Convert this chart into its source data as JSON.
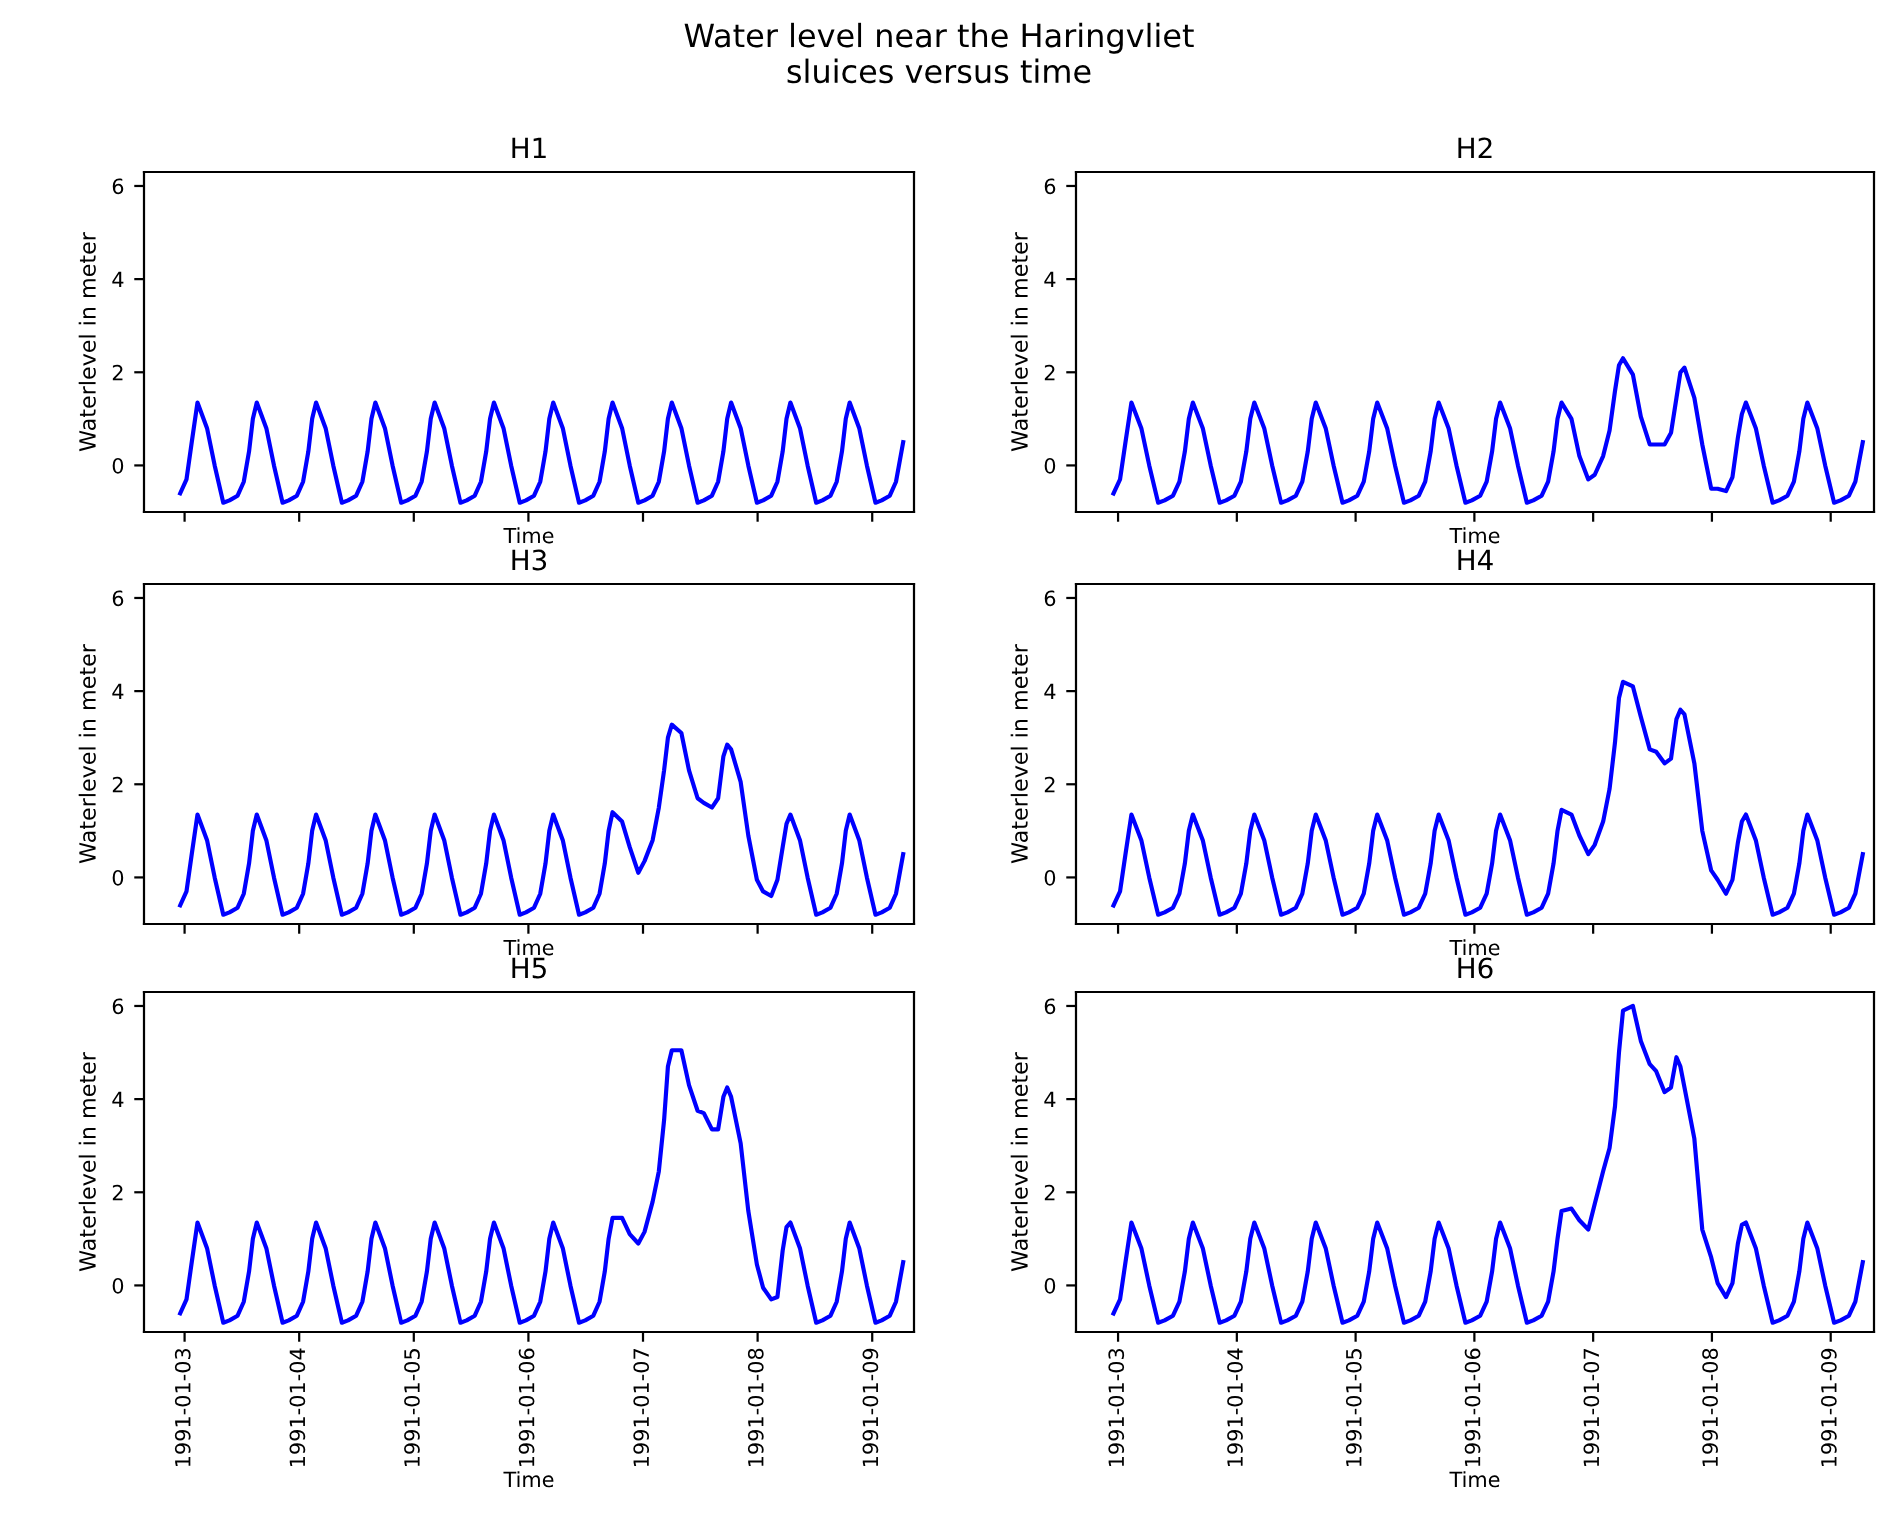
{
  "chart_data": [
    {
      "type": "line",
      "title": "H1",
      "xlabel": "Time",
      "ylabel": "Waterlevel in meter",
      "annotations": [
        "Water level near the Haringvliet\nsluices versus time"
      ],
      "tick_labels": "y",
      "xlim": [
        "1991-01-02T15:30",
        "1991-01-09T08:45"
      ],
      "ylim": [
        -1.0,
        6.3
      ],
      "yticks": [
        0,
        2,
        4,
        6
      ],
      "xticks": [
        "1991-01-03",
        "1991-01-04",
        "1991-01-05",
        "1991-01-06",
        "1991-01-07",
        "1991-01-08",
        "1991-01-09"
      ],
      "x": [
        "1991-01-02T23:05",
        "1991-01-03T00:24",
        "1991-01-03T01:30",
        "1991-01-03T02:42",
        "1991-01-03T04:42",
        "1991-01-03T06:18",
        "1991-01-03T08:06",
        "1991-01-03T09:24",
        "1991-01-03T11:06",
        "1991-01-03T12:24",
        "1991-01-03T13:30",
        "1991-01-03T14:18",
        "1991-01-03T15:07",
        "1991-01-03T17:07",
        "1991-01-03T18:43",
        "1991-01-03T20:31",
        "1991-01-03T21:49",
        "1991-01-03T23:31",
        "1991-01-04T00:49",
        "1991-01-04T01:55",
        "1991-01-04T02:43",
        "1991-01-04T03:32",
        "1991-01-04T05:32",
        "1991-01-04T07:08",
        "1991-01-04T08:56",
        "1991-01-04T10:14",
        "1991-01-04T11:56",
        "1991-01-04T13:14",
        "1991-01-04T14:20",
        "1991-01-04T15:08",
        "1991-01-04T15:57",
        "1991-01-04T17:57",
        "1991-01-04T19:33",
        "1991-01-04T21:21",
        "1991-01-04T22:39",
        "1991-01-05T00:21",
        "1991-01-05T01:39",
        "1991-01-05T02:45",
        "1991-01-05T03:33",
        "1991-01-05T04:22",
        "1991-01-05T06:22",
        "1991-01-05T07:58",
        "1991-01-05T09:46",
        "1991-01-05T11:04",
        "1991-01-05T12:46",
        "1991-01-05T14:04",
        "1991-01-05T15:10",
        "1991-01-05T15:58",
        "1991-01-05T16:47",
        "1991-01-05T18:47",
        "1991-01-05T20:23",
        "1991-01-05T22:11",
        "1991-01-05T23:29",
        "1991-01-06T01:11",
        "1991-01-06T02:29",
        "1991-01-06T03:35",
        "1991-01-06T04:23",
        "1991-01-06T05:12",
        "1991-01-06T07:12",
        "1991-01-06T08:48",
        "1991-01-06T10:36",
        "1991-01-06T11:54",
        "1991-01-06T13:36",
        "1991-01-06T14:54",
        "1991-01-06T16:00",
        "1991-01-06T16:48",
        "1991-01-06T17:37",
        "1991-01-06T19:37",
        "1991-01-06T21:13",
        "1991-01-06T23:01",
        "1991-01-07T00:19",
        "1991-01-07T02:01",
        "1991-01-07T03:19",
        "1991-01-07T04:25",
        "1991-01-07T05:13",
        "1991-01-07T06:02",
        "1991-01-07T08:02",
        "1991-01-07T09:38",
        "1991-01-07T11:26",
        "1991-01-07T12:44",
        "1991-01-07T14:26",
        "1991-01-07T15:44",
        "1991-01-07T16:50",
        "1991-01-07T17:38",
        "1991-01-07T18:27",
        "1991-01-07T20:27",
        "1991-01-07T22:03",
        "1991-01-07T23:51",
        "1991-01-08T01:09",
        "1991-01-08T02:51",
        "1991-01-08T04:09",
        "1991-01-08T05:15",
        "1991-01-08T06:03",
        "1991-01-08T06:52",
        "1991-01-08T08:52",
        "1991-01-08T10:28",
        "1991-01-08T12:16",
        "1991-01-08T13:34",
        "1991-01-08T15:16",
        "1991-01-08T16:34",
        "1991-01-08T17:40",
        "1991-01-08T18:28",
        "1991-01-08T19:17",
        "1991-01-08T21:17",
        "1991-01-08T22:53",
        "1991-01-09T00:41",
        "1991-01-09T01:59",
        "1991-01-09T03:41",
        "1991-01-09T04:59",
        "1991-01-09T06:29"
      ],
      "series": [
        {
          "color": "#0000ff",
          "values": [
            -0.6,
            -0.3,
            0.5,
            1.35,
            0.8,
            0.0,
            -0.8,
            -0.75,
            -0.65,
            -0.35,
            0.3,
            1.0,
            1.35,
            0.8,
            0.0,
            -0.8,
            -0.75,
            -0.65,
            -0.35,
            0.3,
            1.0,
            1.35,
            0.8,
            0.0,
            -0.8,
            -0.75,
            -0.65,
            -0.35,
            0.3,
            1.0,
            1.35,
            0.8,
            0.0,
            -0.8,
            -0.75,
            -0.65,
            -0.35,
            0.3,
            1.0,
            1.35,
            0.8,
            0.0,
            -0.8,
            -0.75,
            -0.65,
            -0.35,
            0.3,
            1.0,
            1.35,
            0.8,
            0.0,
            -0.8,
            -0.75,
            -0.65,
            -0.35,
            0.3,
            1.0,
            1.35,
            0.8,
            0.0,
            -0.8,
            -0.75,
            -0.65,
            -0.35,
            0.3,
            1.0,
            1.35,
            0.8,
            0.0,
            -0.8,
            -0.75,
            -0.65,
            -0.35,
            0.3,
            1.0,
            1.35,
            0.8,
            0.0,
            -0.8,
            -0.75,
            -0.65,
            -0.35,
            0.3,
            1.0,
            1.35,
            0.8,
            0.0,
            -0.8,
            -0.75,
            -0.65,
            -0.35,
            0.3,
            1.0,
            1.35,
            0.8,
            0.0,
            -0.8,
            -0.75,
            -0.65,
            -0.35,
            0.3,
            1.0,
            1.35,
            0.8,
            0.0,
            -0.8,
            -0.75,
            -0.65,
            -0.35,
            0.5
          ]
        }
      ]
    },
    {
      "type": "line",
      "title": "H2",
      "xlabel": "Time",
      "ylabel": "Waterlevel in meter",
      "tick_labels": "y",
      "xlim": [
        "1991-01-02T15:30",
        "1991-01-09T08:45"
      ],
      "ylim": [
        -1.0,
        6.3
      ],
      "yticks": [
        0,
        2,
        4,
        6
      ],
      "xticks": [
        "1991-01-03",
        "1991-01-04",
        "1991-01-05",
        "1991-01-06",
        "1991-01-07",
        "1991-01-08",
        "1991-01-09"
      ],
      "x": [
        "1991-01-02T23:05",
        "1991-01-03T00:24",
        "1991-01-03T01:30",
        "1991-01-03T02:42",
        "1991-01-03T04:42",
        "1991-01-03T06:18",
        "1991-01-03T08:06",
        "1991-01-03T09:24",
        "1991-01-03T11:06",
        "1991-01-03T12:24",
        "1991-01-03T13:30",
        "1991-01-03T14:18",
        "1991-01-03T15:07",
        "1991-01-03T17:07",
        "1991-01-03T18:43",
        "1991-01-03T20:31",
        "1991-01-03T21:49",
        "1991-01-03T23:31",
        "1991-01-04T00:49",
        "1991-01-04T01:55",
        "1991-01-04T02:43",
        "1991-01-04T03:32",
        "1991-01-04T05:32",
        "1991-01-04T07:08",
        "1991-01-04T08:56",
        "1991-01-04T10:14",
        "1991-01-04T11:56",
        "1991-01-04T13:14",
        "1991-01-04T14:20",
        "1991-01-04T15:08",
        "1991-01-04T15:57",
        "1991-01-04T17:57",
        "1991-01-04T19:33",
        "1991-01-04T21:21",
        "1991-01-04T22:39",
        "1991-01-05T00:21",
        "1991-01-05T01:39",
        "1991-01-05T02:45",
        "1991-01-05T03:33",
        "1991-01-05T04:22",
        "1991-01-05T06:22",
        "1991-01-05T07:58",
        "1991-01-05T09:46",
        "1991-01-05T11:04",
        "1991-01-05T12:46",
        "1991-01-05T14:04",
        "1991-01-05T15:10",
        "1991-01-05T15:58",
        "1991-01-05T16:47",
        "1991-01-05T18:47",
        "1991-01-05T20:23",
        "1991-01-05T22:11",
        "1991-01-05T23:29",
        "1991-01-06T01:11",
        "1991-01-06T02:29",
        "1991-01-06T03:35",
        "1991-01-06T04:23",
        "1991-01-06T05:12",
        "1991-01-06T07:12",
        "1991-01-06T08:48",
        "1991-01-06T10:36",
        "1991-01-06T11:54",
        "1991-01-06T13:36",
        "1991-01-06T14:54",
        "1991-01-06T16:00",
        "1991-01-06T16:48",
        "1991-01-06T17:37",
        "1991-01-06T19:37",
        "1991-01-06T21:13",
        "1991-01-06T23:01",
        "1991-01-07T00:19",
        "1991-01-07T02:01",
        "1991-01-07T03:19",
        "1991-01-07T04:25",
        "1991-01-07T05:13",
        "1991-01-07T06:02",
        "1991-01-07T08:02",
        "1991-01-07T09:38",
        "1991-01-07T11:26",
        "1991-01-07T12:44",
        "1991-01-07T14:26",
        "1991-01-07T15:44",
        "1991-01-07T16:50",
        "1991-01-07T17:38",
        "1991-01-07T18:27",
        "1991-01-07T20:27",
        "1991-01-07T22:03",
        "1991-01-07T23:51",
        "1991-01-08T01:09",
        "1991-01-08T02:51",
        "1991-01-08T04:09",
        "1991-01-08T05:15",
        "1991-01-08T06:03",
        "1991-01-08T06:52",
        "1991-01-08T08:52",
        "1991-01-08T10:28",
        "1991-01-08T12:16",
        "1991-01-08T13:34",
        "1991-01-08T15:16",
        "1991-01-08T16:34",
        "1991-01-08T17:40",
        "1991-01-08T18:28",
        "1991-01-08T19:17",
        "1991-01-08T21:17",
        "1991-01-08T22:53",
        "1991-01-09T00:41",
        "1991-01-09T01:59",
        "1991-01-09T03:41",
        "1991-01-09T04:59",
        "1991-01-09T06:29"
      ],
      "series": [
        {
          "color": "#0000ff",
          "values": [
            -0.6,
            -0.3,
            0.5,
            1.35,
            0.8,
            0.0,
            -0.8,
            -0.75,
            -0.65,
            -0.35,
            0.3,
            1.0,
            1.35,
            0.8,
            0.0,
            -0.8,
            -0.75,
            -0.65,
            -0.35,
            0.3,
            1.0,
            1.35,
            0.8,
            0.0,
            -0.8,
            -0.75,
            -0.65,
            -0.35,
            0.3,
            1.0,
            1.35,
            0.8,
            0.0,
            -0.8,
            -0.75,
            -0.65,
            -0.35,
            0.3,
            1.0,
            1.35,
            0.8,
            0.0,
            -0.8,
            -0.75,
            -0.65,
            -0.35,
            0.3,
            1.0,
            1.35,
            0.8,
            0.0,
            -0.8,
            -0.75,
            -0.65,
            -0.35,
            0.3,
            1.0,
            1.35,
            0.8,
            0.0,
            -0.8,
            -0.75,
            -0.65,
            -0.35,
            0.3,
            1.0,
            1.35,
            1.0,
            0.2,
            -0.3,
            -0.2,
            0.2,
            0.75,
            1.6,
            2.15,
            2.3,
            1.95,
            1.05,
            0.45,
            0.45,
            0.45,
            0.7,
            1.45,
            2.0,
            2.1,
            1.45,
            0.45,
            -0.5,
            -0.5,
            -0.55,
            -0.25,
            0.6,
            1.1,
            1.35,
            0.8,
            0.0,
            -0.8,
            -0.75,
            -0.65,
            -0.35,
            0.3,
            1.0,
            1.35,
            0.8,
            0.0,
            -0.8,
            -0.75,
            -0.65,
            -0.35,
            0.5
          ]
        }
      ]
    },
    {
      "type": "line",
      "title": "H3",
      "xlabel": "Time",
      "ylabel": "Waterlevel in meter",
      "tick_labels": "y",
      "xlim": [
        "1991-01-02T15:30",
        "1991-01-09T08:45"
      ],
      "ylim": [
        -1.0,
        6.3
      ],
      "yticks": [
        0,
        2,
        4,
        6
      ],
      "xticks": [
        "1991-01-03",
        "1991-01-04",
        "1991-01-05",
        "1991-01-06",
        "1991-01-07",
        "1991-01-08",
        "1991-01-09"
      ],
      "x": [
        "1991-01-02T23:05",
        "1991-01-03T00:24",
        "1991-01-03T01:30",
        "1991-01-03T02:42",
        "1991-01-03T04:42",
        "1991-01-03T06:18",
        "1991-01-03T08:06",
        "1991-01-03T09:24",
        "1991-01-03T11:06",
        "1991-01-03T12:24",
        "1991-01-03T13:30",
        "1991-01-03T14:18",
        "1991-01-03T15:07",
        "1991-01-03T17:07",
        "1991-01-03T18:43",
        "1991-01-03T20:31",
        "1991-01-03T21:49",
        "1991-01-03T23:31",
        "1991-01-04T00:49",
        "1991-01-04T01:55",
        "1991-01-04T02:43",
        "1991-01-04T03:32",
        "1991-01-04T05:32",
        "1991-01-04T07:08",
        "1991-01-04T08:56",
        "1991-01-04T10:14",
        "1991-01-04T11:56",
        "1991-01-04T13:14",
        "1991-01-04T14:20",
        "1991-01-04T15:08",
        "1991-01-04T15:57",
        "1991-01-04T17:57",
        "1991-01-04T19:33",
        "1991-01-04T21:21",
        "1991-01-04T22:39",
        "1991-01-05T00:21",
        "1991-01-05T01:39",
        "1991-01-05T02:45",
        "1991-01-05T03:33",
        "1991-01-05T04:22",
        "1991-01-05T06:22",
        "1991-01-05T07:58",
        "1991-01-05T09:46",
        "1991-01-05T11:04",
        "1991-01-05T12:46",
        "1991-01-05T14:04",
        "1991-01-05T15:10",
        "1991-01-05T15:58",
        "1991-01-05T16:47",
        "1991-01-05T18:47",
        "1991-01-05T20:23",
        "1991-01-05T22:11",
        "1991-01-05T23:29",
        "1991-01-06T01:11",
        "1991-01-06T02:29",
        "1991-01-06T03:35",
        "1991-01-06T04:23",
        "1991-01-06T05:12",
        "1991-01-06T07:12",
        "1991-01-06T08:48",
        "1991-01-06T10:36",
        "1991-01-06T11:54",
        "1991-01-06T13:36",
        "1991-01-06T14:54",
        "1991-01-06T16:00",
        "1991-01-06T16:48",
        "1991-01-06T17:37",
        "1991-01-06T19:37",
        "1991-01-06T21:13",
        "1991-01-06T23:01",
        "1991-01-07T00:19",
        "1991-01-07T02:01",
        "1991-01-07T03:19",
        "1991-01-07T04:25",
        "1991-01-07T05:13",
        "1991-01-07T06:02",
        "1991-01-07T08:02",
        "1991-01-07T09:38",
        "1991-01-07T11:26",
        "1991-01-07T12:44",
        "1991-01-07T14:26",
        "1991-01-07T15:44",
        "1991-01-07T16:50",
        "1991-01-07T17:38",
        "1991-01-07T18:27",
        "1991-01-07T20:27",
        "1991-01-07T22:03",
        "1991-01-07T23:51",
        "1991-01-08T01:09",
        "1991-01-08T02:51",
        "1991-01-08T04:09",
        "1991-01-08T05:15",
        "1991-01-08T06:03",
        "1991-01-08T06:52",
        "1991-01-08T08:52",
        "1991-01-08T10:28",
        "1991-01-08T12:16",
        "1991-01-08T13:34",
        "1991-01-08T15:16",
        "1991-01-08T16:34",
        "1991-01-08T17:40",
        "1991-01-08T18:28",
        "1991-01-08T19:17",
        "1991-01-08T21:17",
        "1991-01-08T22:53",
        "1991-01-09T00:41",
        "1991-01-09T01:59",
        "1991-01-09T03:41",
        "1991-01-09T04:59",
        "1991-01-09T06:29"
      ],
      "series": [
        {
          "color": "#0000ff",
          "values": [
            -0.6,
            -0.3,
            0.5,
            1.35,
            0.8,
            0.0,
            -0.8,
            -0.75,
            -0.65,
            -0.35,
            0.3,
            1.0,
            1.35,
            0.8,
            0.0,
            -0.8,
            -0.75,
            -0.65,
            -0.35,
            0.3,
            1.0,
            1.35,
            0.8,
            0.0,
            -0.8,
            -0.75,
            -0.65,
            -0.35,
            0.3,
            1.0,
            1.35,
            0.8,
            0.0,
            -0.8,
            -0.75,
            -0.65,
            -0.35,
            0.3,
            1.0,
            1.35,
            0.8,
            0.0,
            -0.8,
            -0.75,
            -0.65,
            -0.35,
            0.3,
            1.0,
            1.35,
            0.8,
            0.0,
            -0.8,
            -0.75,
            -0.65,
            -0.35,
            0.3,
            1.0,
            1.35,
            0.8,
            0.0,
            -0.8,
            -0.75,
            -0.65,
            -0.35,
            0.3,
            1.0,
            1.4,
            1.2,
            0.65,
            0.1,
            0.35,
            0.8,
            1.5,
            2.3,
            3.0,
            3.28,
            3.1,
            2.3,
            1.7,
            1.6,
            1.5,
            1.7,
            2.6,
            2.85,
            2.75,
            2.05,
            0.9,
            -0.05,
            -0.3,
            -0.4,
            -0.05,
            0.65,
            1.15,
            1.35,
            0.8,
            0.0,
            -0.8,
            -0.75,
            -0.65,
            -0.35,
            0.3,
            1.0,
            1.35,
            0.8,
            0.0,
            -0.8,
            -0.75,
            -0.65,
            -0.35,
            0.5
          ]
        }
      ]
    },
    {
      "type": "line",
      "title": "H4",
      "xlabel": "Time",
      "ylabel": "Waterlevel in meter",
      "tick_labels": "y",
      "xlim": [
        "1991-01-02T15:30",
        "1991-01-09T08:45"
      ],
      "ylim": [
        -1.0,
        6.3
      ],
      "yticks": [
        0,
        2,
        4,
        6
      ],
      "xticks": [
        "1991-01-03",
        "1991-01-04",
        "1991-01-05",
        "1991-01-06",
        "1991-01-07",
        "1991-01-08",
        "1991-01-09"
      ],
      "x": [
        "1991-01-02T23:05",
        "1991-01-03T00:24",
        "1991-01-03T01:30",
        "1991-01-03T02:42",
        "1991-01-03T04:42",
        "1991-01-03T06:18",
        "1991-01-03T08:06",
        "1991-01-03T09:24",
        "1991-01-03T11:06",
        "1991-01-03T12:24",
        "1991-01-03T13:30",
        "1991-01-03T14:18",
        "1991-01-03T15:07",
        "1991-01-03T17:07",
        "1991-01-03T18:43",
        "1991-01-03T20:31",
        "1991-01-03T21:49",
        "1991-01-03T23:31",
        "1991-01-04T00:49",
        "1991-01-04T01:55",
        "1991-01-04T02:43",
        "1991-01-04T03:32",
        "1991-01-04T05:32",
        "1991-01-04T07:08",
        "1991-01-04T08:56",
        "1991-01-04T10:14",
        "1991-01-04T11:56",
        "1991-01-04T13:14",
        "1991-01-04T14:20",
        "1991-01-04T15:08",
        "1991-01-04T15:57",
        "1991-01-04T17:57",
        "1991-01-04T19:33",
        "1991-01-04T21:21",
        "1991-01-04T22:39",
        "1991-01-05T00:21",
        "1991-01-05T01:39",
        "1991-01-05T02:45",
        "1991-01-05T03:33",
        "1991-01-05T04:22",
        "1991-01-05T06:22",
        "1991-01-05T07:58",
        "1991-01-05T09:46",
        "1991-01-05T11:04",
        "1991-01-05T12:46",
        "1991-01-05T14:04",
        "1991-01-05T15:10",
        "1991-01-05T15:58",
        "1991-01-05T16:47",
        "1991-01-05T18:47",
        "1991-01-05T20:23",
        "1991-01-05T22:11",
        "1991-01-05T23:29",
        "1991-01-06T01:11",
        "1991-01-06T02:29",
        "1991-01-06T03:35",
        "1991-01-06T04:23",
        "1991-01-06T05:12",
        "1991-01-06T07:12",
        "1991-01-06T08:48",
        "1991-01-06T10:36",
        "1991-01-06T11:54",
        "1991-01-06T13:36",
        "1991-01-06T14:54",
        "1991-01-06T16:00",
        "1991-01-06T16:48",
        "1991-01-06T17:37",
        "1991-01-06T19:37",
        "1991-01-06T21:13",
        "1991-01-06T23:01",
        "1991-01-07T00:19",
        "1991-01-07T02:01",
        "1991-01-07T03:19",
        "1991-01-07T04:25",
        "1991-01-07T05:13",
        "1991-01-07T06:02",
        "1991-01-07T08:02",
        "1991-01-07T09:38",
        "1991-01-07T11:26",
        "1991-01-07T12:44",
        "1991-01-07T14:26",
        "1991-01-07T15:44",
        "1991-01-07T16:50",
        "1991-01-07T17:38",
        "1991-01-07T18:27",
        "1991-01-07T20:27",
        "1991-01-07T22:03",
        "1991-01-07T23:51",
        "1991-01-08T01:09",
        "1991-01-08T02:51",
        "1991-01-08T04:09",
        "1991-01-08T05:15",
        "1991-01-08T06:03",
        "1991-01-08T06:52",
        "1991-01-08T08:52",
        "1991-01-08T10:28",
        "1991-01-08T12:16",
        "1991-01-08T13:34",
        "1991-01-08T15:16",
        "1991-01-08T16:34",
        "1991-01-08T17:40",
        "1991-01-08T18:28",
        "1991-01-08T19:17",
        "1991-01-08T21:17",
        "1991-01-08T22:53",
        "1991-01-09T00:41",
        "1991-01-09T01:59",
        "1991-01-09T03:41",
        "1991-01-09T04:59",
        "1991-01-09T06:29"
      ],
      "series": [
        {
          "color": "#0000ff",
          "values": [
            -0.6,
            -0.3,
            0.5,
            1.35,
            0.8,
            0.0,
            -0.8,
            -0.75,
            -0.65,
            -0.35,
            0.3,
            1.0,
            1.35,
            0.8,
            0.0,
            -0.8,
            -0.75,
            -0.65,
            -0.35,
            0.3,
            1.0,
            1.35,
            0.8,
            0.0,
            -0.8,
            -0.75,
            -0.65,
            -0.35,
            0.3,
            1.0,
            1.35,
            0.8,
            0.0,
            -0.8,
            -0.75,
            -0.65,
            -0.35,
            0.3,
            1.0,
            1.35,
            0.8,
            0.0,
            -0.8,
            -0.75,
            -0.65,
            -0.35,
            0.3,
            1.0,
            1.35,
            0.8,
            0.0,
            -0.8,
            -0.75,
            -0.65,
            -0.35,
            0.3,
            1.0,
            1.35,
            0.8,
            0.0,
            -0.8,
            -0.75,
            -0.65,
            -0.35,
            0.3,
            1.0,
            1.45,
            1.35,
            0.9,
            0.5,
            0.7,
            1.2,
            1.9,
            2.9,
            3.85,
            4.2,
            4.1,
            3.45,
            2.75,
            2.7,
            2.45,
            2.55,
            3.4,
            3.6,
            3.5,
            2.45,
            1.0,
            0.15,
            -0.05,
            -0.35,
            -0.05,
            0.75,
            1.2,
            1.35,
            0.8,
            0.0,
            -0.8,
            -0.75,
            -0.65,
            -0.35,
            0.3,
            1.0,
            1.35,
            0.8,
            0.0,
            -0.8,
            -0.75,
            -0.65,
            -0.35,
            0.5
          ]
        }
      ]
    },
    {
      "type": "line",
      "title": "H5",
      "xlabel": "Time",
      "ylabel": "Waterlevel in meter",
      "xlim": [
        "1991-01-02T15:30",
        "1991-01-09T08:45"
      ],
      "ylim": [
        -1.0,
        6.3
      ],
      "yticks": [
        0,
        2,
        4,
        6
      ],
      "xticks": [
        "1991-01-03",
        "1991-01-04",
        "1991-01-05",
        "1991-01-06",
        "1991-01-07",
        "1991-01-08",
        "1991-01-09"
      ],
      "x": [
        "1991-01-02T23:05",
        "1991-01-03T00:24",
        "1991-01-03T01:30",
        "1991-01-03T02:42",
        "1991-01-03T04:42",
        "1991-01-03T06:18",
        "1991-01-03T08:06",
        "1991-01-03T09:24",
        "1991-01-03T11:06",
        "1991-01-03T12:24",
        "1991-01-03T13:30",
        "1991-01-03T14:18",
        "1991-01-03T15:07",
        "1991-01-03T17:07",
        "1991-01-03T18:43",
        "1991-01-03T20:31",
        "1991-01-03T21:49",
        "1991-01-03T23:31",
        "1991-01-04T00:49",
        "1991-01-04T01:55",
        "1991-01-04T02:43",
        "1991-01-04T03:32",
        "1991-01-04T05:32",
        "1991-01-04T07:08",
        "1991-01-04T08:56",
        "1991-01-04T10:14",
        "1991-01-04T11:56",
        "1991-01-04T13:14",
        "1991-01-04T14:20",
        "1991-01-04T15:08",
        "1991-01-04T15:57",
        "1991-01-04T17:57",
        "1991-01-04T19:33",
        "1991-01-04T21:21",
        "1991-01-04T22:39",
        "1991-01-05T00:21",
        "1991-01-05T01:39",
        "1991-01-05T02:45",
        "1991-01-05T03:33",
        "1991-01-05T04:22",
        "1991-01-05T06:22",
        "1991-01-05T07:58",
        "1991-01-05T09:46",
        "1991-01-05T11:04",
        "1991-01-05T12:46",
        "1991-01-05T14:04",
        "1991-01-05T15:10",
        "1991-01-05T15:58",
        "1991-01-05T16:47",
        "1991-01-05T18:47",
        "1991-01-05T20:23",
        "1991-01-05T22:11",
        "1991-01-05T23:29",
        "1991-01-06T01:11",
        "1991-01-06T02:29",
        "1991-01-06T03:35",
        "1991-01-06T04:23",
        "1991-01-06T05:12",
        "1991-01-06T07:12",
        "1991-01-06T08:48",
        "1991-01-06T10:36",
        "1991-01-06T11:54",
        "1991-01-06T13:36",
        "1991-01-06T14:54",
        "1991-01-06T16:00",
        "1991-01-06T16:48",
        "1991-01-06T17:37",
        "1991-01-06T19:37",
        "1991-01-06T21:13",
        "1991-01-06T23:01",
        "1991-01-07T00:19",
        "1991-01-07T02:01",
        "1991-01-07T03:19",
        "1991-01-07T04:25",
        "1991-01-07T05:13",
        "1991-01-07T06:02",
        "1991-01-07T08:02",
        "1991-01-07T09:38",
        "1991-01-07T11:26",
        "1991-01-07T12:44",
        "1991-01-07T14:26",
        "1991-01-07T15:44",
        "1991-01-07T16:50",
        "1991-01-07T17:38",
        "1991-01-07T18:27",
        "1991-01-07T20:27",
        "1991-01-07T22:03",
        "1991-01-07T23:51",
        "1991-01-08T01:09",
        "1991-01-08T02:51",
        "1991-01-08T04:09",
        "1991-01-08T05:15",
        "1991-01-08T06:03",
        "1991-01-08T06:52",
        "1991-01-08T08:52",
        "1991-01-08T10:28",
        "1991-01-08T12:16",
        "1991-01-08T13:34",
        "1991-01-08T15:16",
        "1991-01-08T16:34",
        "1991-01-08T17:40",
        "1991-01-08T18:28",
        "1991-01-08T19:17",
        "1991-01-08T21:17",
        "1991-01-08T22:53",
        "1991-01-09T00:41",
        "1991-01-09T01:59",
        "1991-01-09T03:41",
        "1991-01-09T04:59",
        "1991-01-09T06:29"
      ],
      "series": [
        {
          "color": "#0000ff",
          "values": [
            -0.6,
            -0.3,
            0.5,
            1.35,
            0.8,
            0.0,
            -0.8,
            -0.75,
            -0.65,
            -0.35,
            0.3,
            1.0,
            1.35,
            0.8,
            0.0,
            -0.8,
            -0.75,
            -0.65,
            -0.35,
            0.3,
            1.0,
            1.35,
            0.8,
            0.0,
            -0.8,
            -0.75,
            -0.65,
            -0.35,
            0.3,
            1.0,
            1.35,
            0.8,
            0.0,
            -0.8,
            -0.75,
            -0.65,
            -0.35,
            0.3,
            1.0,
            1.35,
            0.8,
            0.0,
            -0.8,
            -0.75,
            -0.65,
            -0.35,
            0.3,
            1.0,
            1.35,
            0.8,
            0.0,
            -0.8,
            -0.75,
            -0.65,
            -0.35,
            0.3,
            1.0,
            1.35,
            0.8,
            0.0,
            -0.8,
            -0.75,
            -0.65,
            -0.35,
            0.3,
            1.0,
            1.45,
            1.45,
            1.1,
            0.9,
            1.15,
            1.8,
            2.45,
            3.55,
            4.7,
            5.05,
            5.05,
            4.3,
            3.75,
            3.7,
            3.35,
            3.35,
            4.05,
            4.25,
            4.05,
            3.05,
            1.6,
            0.45,
            -0.05,
            -0.3,
            -0.25,
            0.75,
            1.25,
            1.35,
            0.8,
            0.0,
            -0.8,
            -0.75,
            -0.65,
            -0.35,
            0.3,
            1.0,
            1.35,
            0.8,
            0.0,
            -0.8,
            -0.75,
            -0.65,
            -0.35,
            0.5
          ]
        }
      ]
    },
    {
      "type": "line",
      "title": "H6",
      "xlabel": "Time",
      "ylabel": "Waterlevel in meter",
      "xlim": [
        "1991-01-02T15:30",
        "1991-01-09T08:45"
      ],
      "ylim": [
        -1.0,
        6.3
      ],
      "yticks": [
        0,
        2,
        4,
        6
      ],
      "xticks": [
        "1991-01-03",
        "1991-01-04",
        "1991-01-05",
        "1991-01-06",
        "1991-01-07",
        "1991-01-08",
        "1991-01-09"
      ],
      "x": [
        "1991-01-02T23:05",
        "1991-01-03T00:24",
        "1991-01-03T01:30",
        "1991-01-03T02:42",
        "1991-01-03T04:42",
        "1991-01-03T06:18",
        "1991-01-03T08:06",
        "1991-01-03T09:24",
        "1991-01-03T11:06",
        "1991-01-03T12:24",
        "1991-01-03T13:30",
        "1991-01-03T14:18",
        "1991-01-03T15:07",
        "1991-01-03T17:07",
        "1991-01-03T18:43",
        "1991-01-03T20:31",
        "1991-01-03T21:49",
        "1991-01-03T23:31",
        "1991-01-04T00:49",
        "1991-01-04T01:55",
        "1991-01-04T02:43",
        "1991-01-04T03:32",
        "1991-01-04T05:32",
        "1991-01-04T07:08",
        "1991-01-04T08:56",
        "1991-01-04T10:14",
        "1991-01-04T11:56",
        "1991-01-04T13:14",
        "1991-01-04T14:20",
        "1991-01-04T15:08",
        "1991-01-04T15:57",
        "1991-01-04T17:57",
        "1991-01-04T19:33",
        "1991-01-04T21:21",
        "1991-01-04T22:39",
        "1991-01-05T00:21",
        "1991-01-05T01:39",
        "1991-01-05T02:45",
        "1991-01-05T03:33",
        "1991-01-05T04:22",
        "1991-01-05T06:22",
        "1991-01-05T07:58",
        "1991-01-05T09:46",
        "1991-01-05T11:04",
        "1991-01-05T12:46",
        "1991-01-05T14:04",
        "1991-01-05T15:10",
        "1991-01-05T15:58",
        "1991-01-05T16:47",
        "1991-01-05T18:47",
        "1991-01-05T20:23",
        "1991-01-05T22:11",
        "1991-01-05T23:29",
        "1991-01-06T01:11",
        "1991-01-06T02:29",
        "1991-01-06T03:35",
        "1991-01-06T04:23",
        "1991-01-06T05:12",
        "1991-01-06T07:12",
        "1991-01-06T08:48",
        "1991-01-06T10:36",
        "1991-01-06T11:54",
        "1991-01-06T13:36",
        "1991-01-06T14:54",
        "1991-01-06T16:00",
        "1991-01-06T16:48",
        "1991-01-06T17:37",
        "1991-01-06T19:37",
        "1991-01-06T21:13",
        "1991-01-06T23:01",
        "1991-01-07T00:19",
        "1991-01-07T02:01",
        "1991-01-07T03:19",
        "1991-01-07T04:25",
        "1991-01-07T05:13",
        "1991-01-07T06:02",
        "1991-01-07T08:02",
        "1991-01-07T09:38",
        "1991-01-07T11:26",
        "1991-01-07T12:44",
        "1991-01-07T14:26",
        "1991-01-07T15:44",
        "1991-01-07T16:50",
        "1991-01-07T17:38",
        "1991-01-07T18:27",
        "1991-01-07T20:27",
        "1991-01-07T22:03",
        "1991-01-07T23:51",
        "1991-01-08T01:09",
        "1991-01-08T02:51",
        "1991-01-08T04:09",
        "1991-01-08T05:15",
        "1991-01-08T06:03",
        "1991-01-08T06:52",
        "1991-01-08T08:52",
        "1991-01-08T10:28",
        "1991-01-08T12:16",
        "1991-01-08T13:34",
        "1991-01-08T15:16",
        "1991-01-08T16:34",
        "1991-01-08T17:40",
        "1991-01-08T18:28",
        "1991-01-08T19:17",
        "1991-01-08T21:17",
        "1991-01-08T22:53",
        "1991-01-09T00:41",
        "1991-01-09T01:59",
        "1991-01-09T03:41",
        "1991-01-09T04:59",
        "1991-01-09T06:29"
      ],
      "series": [
        {
          "color": "#0000ff",
          "values": [
            -0.6,
            -0.3,
            0.5,
            1.35,
            0.8,
            0.0,
            -0.8,
            -0.75,
            -0.65,
            -0.35,
            0.3,
            1.0,
            1.35,
            0.8,
            0.0,
            -0.8,
            -0.75,
            -0.65,
            -0.35,
            0.3,
            1.0,
            1.35,
            0.8,
            0.0,
            -0.8,
            -0.75,
            -0.65,
            -0.35,
            0.3,
            1.0,
            1.35,
            0.8,
            0.0,
            -0.8,
            -0.75,
            -0.65,
            -0.35,
            0.3,
            1.0,
            1.35,
            0.8,
            0.0,
            -0.8,
            -0.75,
            -0.65,
            -0.35,
            0.3,
            1.0,
            1.35,
            0.8,
            0.0,
            -0.8,
            -0.75,
            -0.65,
            -0.35,
            0.3,
            1.0,
            1.35,
            0.8,
            0.0,
            -0.8,
            -0.75,
            -0.65,
            -0.35,
            0.3,
            1.0,
            1.6,
            1.65,
            1.4,
            1.2,
            1.75,
            2.45,
            2.95,
            3.85,
            5.0,
            5.9,
            6.0,
            5.25,
            4.75,
            4.6,
            4.15,
            4.25,
            4.9,
            4.7,
            4.25,
            3.15,
            1.2,
            0.6,
            0.05,
            -0.25,
            0.05,
            0.9,
            1.3,
            1.35,
            0.8,
            0.0,
            -0.8,
            -0.75,
            -0.65,
            -0.35,
            0.3,
            1.0,
            1.35,
            0.8,
            0.0,
            -0.8,
            -0.75,
            -0.65,
            -0.35,
            0.5
          ]
        }
      ]
    }
  ]
}
